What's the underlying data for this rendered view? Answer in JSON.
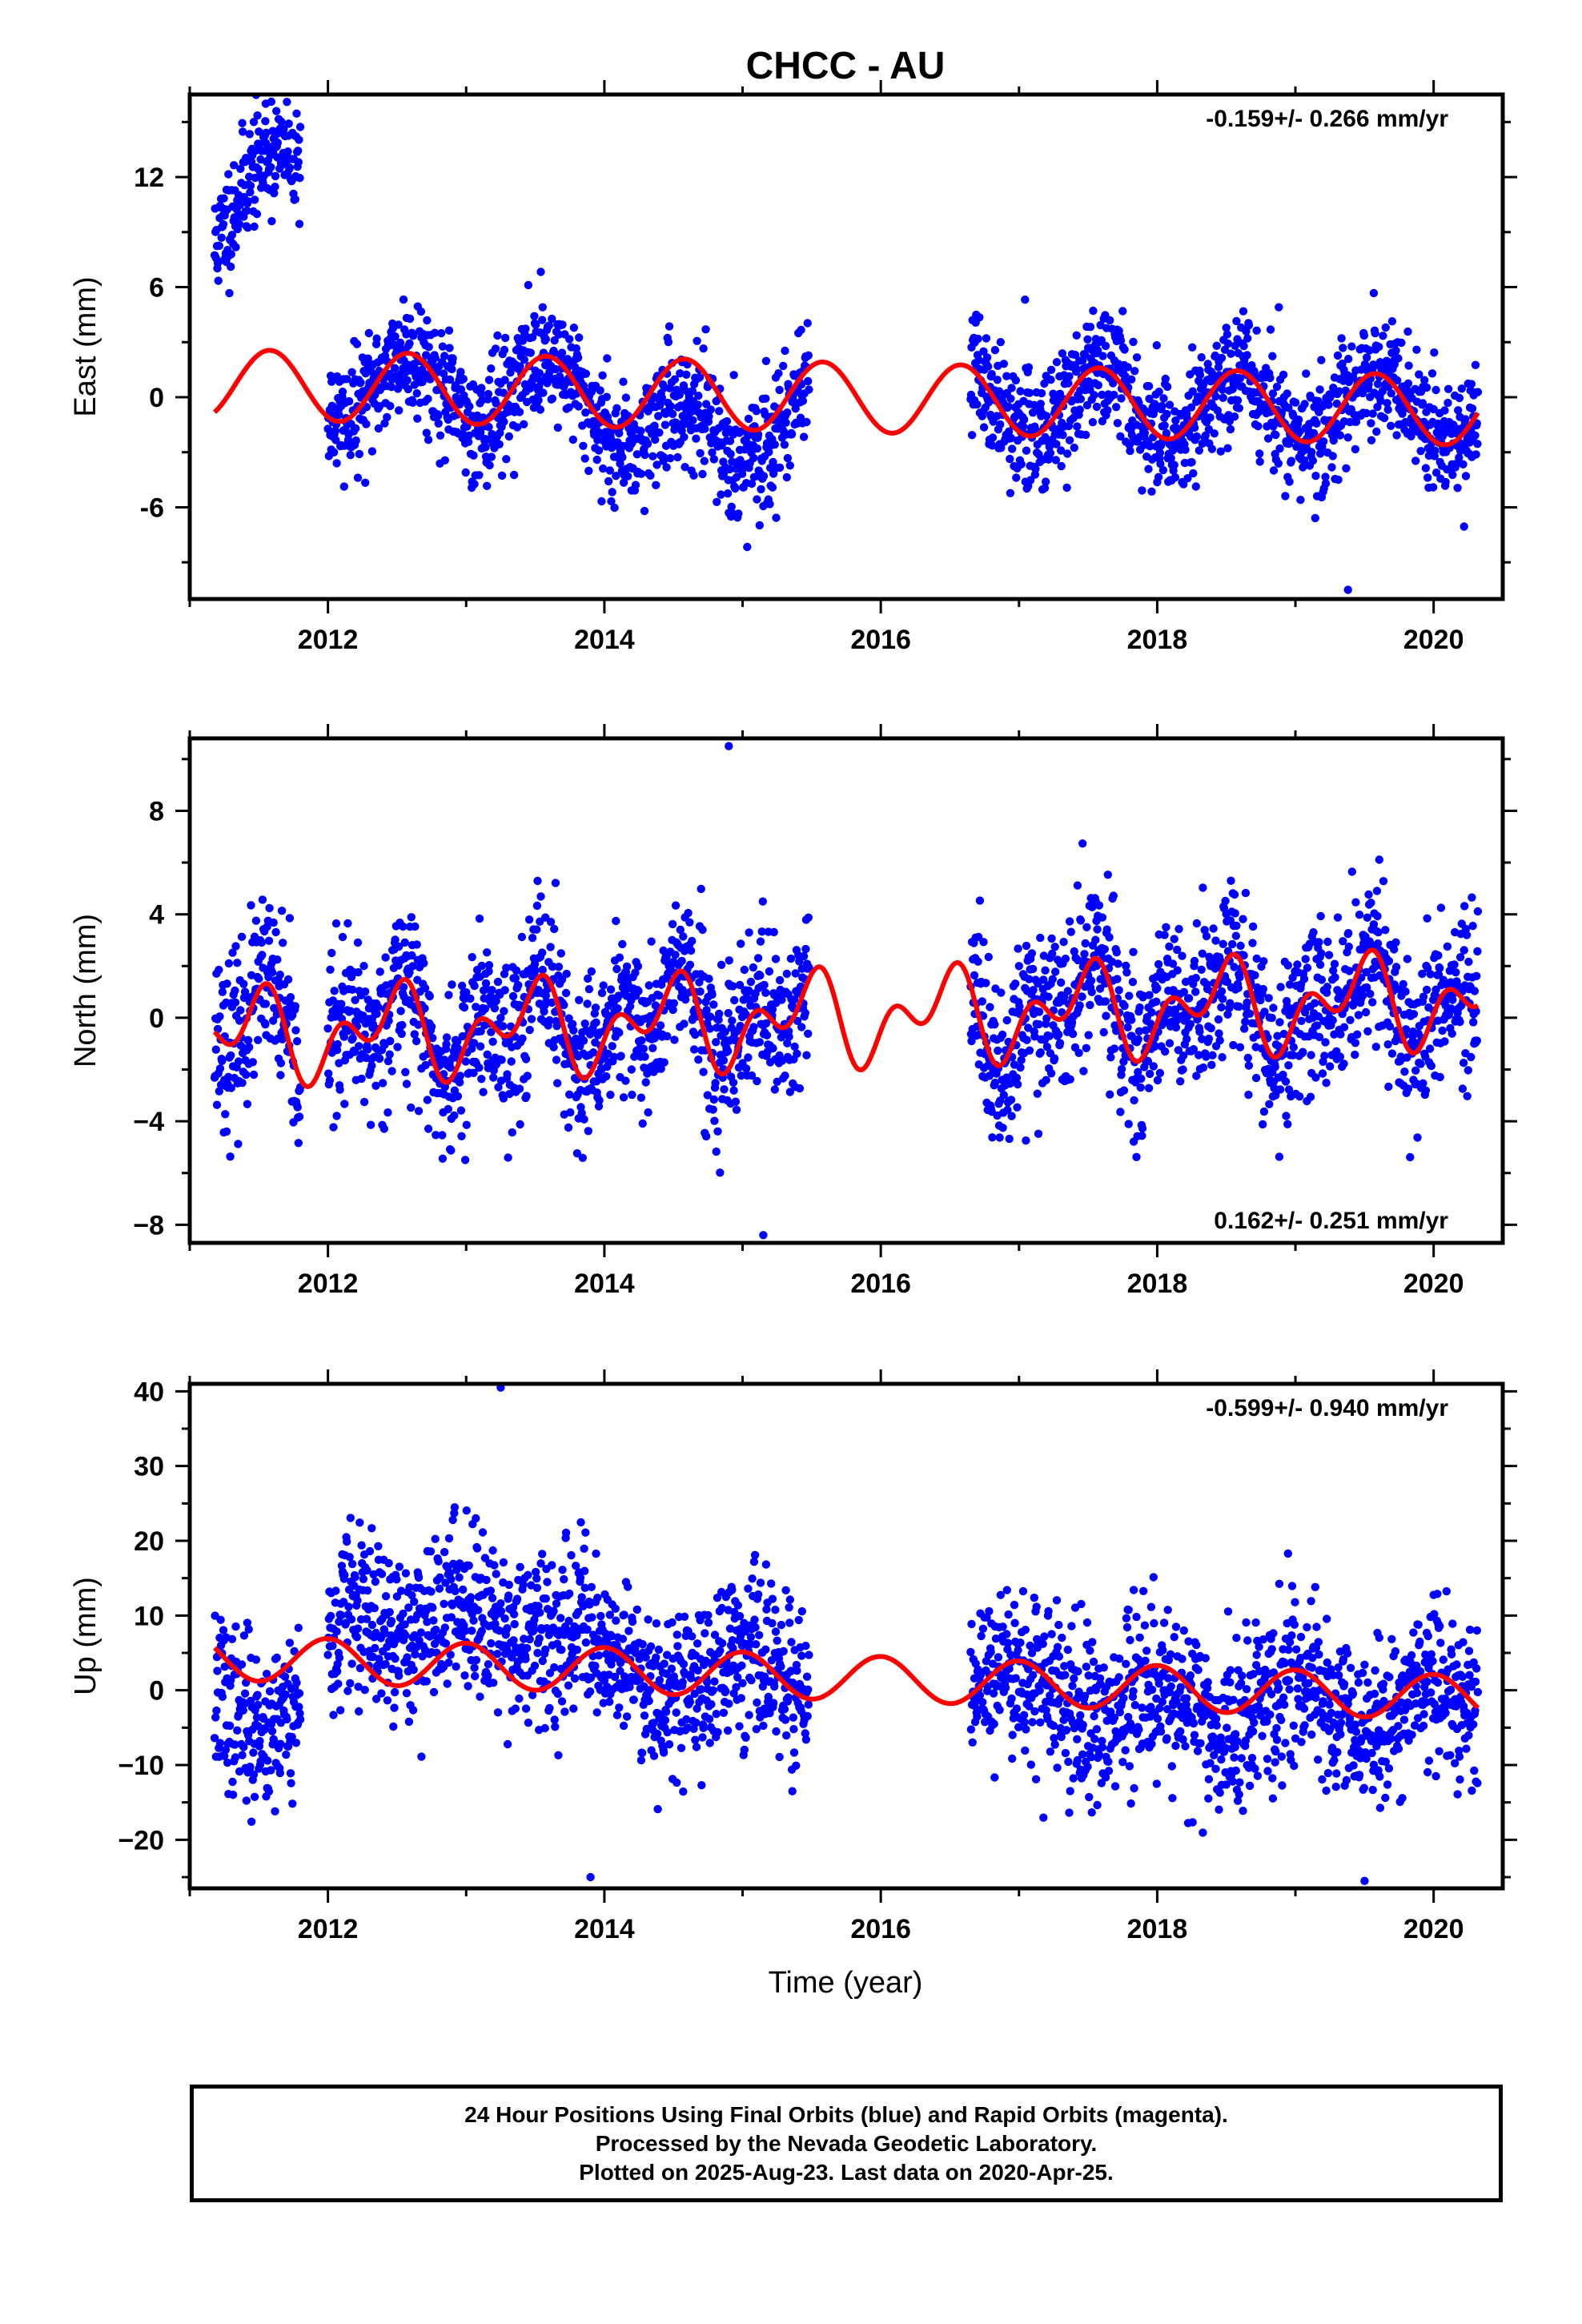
{
  "title": "CHCC - AU",
  "x_label": "Time (year)",
  "footer": {
    "line1": "24 Hour Positions Using Final Orbits (blue) and Rapid Orbits (magenta).",
    "line2": "Processed by the Nevada Geodetic Laboratory.",
    "line3": "Plotted on 2025-Aug-23. Last data on 2020-Apr-25."
  },
  "colors": {
    "points": "#0000ff",
    "model": "#ff0000",
    "frame": "#000000"
  },
  "chart_data": [
    {
      "type": "scatter",
      "name": "east",
      "ylabel": "East (mm)",
      "rate_label": "-0.159+/- 0.266 mm/yr",
      "rate_position": "top-right",
      "xlim": [
        2011.0,
        2020.5
      ],
      "ylim": [
        -11.0,
        16.5
      ],
      "x_ticks": [
        2012,
        2014,
        2016,
        2018,
        2020
      ],
      "x_tick_labels": [
        "2012",
        "2014",
        "2016",
        "2018",
        "2020"
      ],
      "y_ticks": [
        -6,
        0,
        6,
        12
      ],
      "y_tick_labels": [
        "-6",
        "0",
        "6",
        "12"
      ],
      "data_ranges": [
        [
          2011.18,
          2011.8
        ],
        [
          2012.0,
          2015.48
        ],
        [
          2016.65,
          2020.32
        ]
      ],
      "model": {
        "t0": 2011.18,
        "t1": 2020.32,
        "offset": 0.0,
        "rate": -0.159,
        "ref_year": 2015.7,
        "annual": [
          1.9,
          0.0
        ],
        "semiannual": [
          0.0,
          0.0
        ],
        "amp_decay": 0.0,
        "ann_phase": 2011.58,
        "sa_phase": 2011.58
      },
      "annotated_points": [
        {
          "x": 2011.55,
          "y": 16.0
        },
        {
          "x": 2019.38,
          "y": -10.5
        }
      ]
    },
    {
      "type": "scatter",
      "name": "north",
      "ylabel": "North (mm)",
      "rate_label": "0.162+/- 0.251 mm/yr",
      "rate_position": "bottom-right",
      "xlim": [
        2011.0,
        2020.5
      ],
      "ylim": [
        -8.7,
        10.8
      ],
      "x_ticks": [
        2012,
        2014,
        2016,
        2018,
        2020
      ],
      "x_tick_labels": [
        "2012",
        "2014",
        "2016",
        "2018",
        "2020"
      ],
      "y_ticks": [
        -8,
        -4,
        0,
        4,
        8
      ],
      "y_tick_labels": [
        "−8",
        "−4",
        "0",
        "4",
        "8"
      ],
      "data_ranges": [
        [
          2011.18,
          2011.8
        ],
        [
          2012.0,
          2015.48
        ],
        [
          2016.65,
          2020.32
        ]
      ],
      "model": {
        "t0": 2011.18,
        "t1": 2020.32,
        "offset": 0.0,
        "rate": 0.162,
        "ref_year": 2015.7,
        "annual": [
          1.2,
          0.0
        ],
        "semiannual": [
          1.1,
          0.0
        ],
        "amp_decay": 0.0,
        "ann_phase": 2011.45,
        "sa_phase": 2011.58
      },
      "annotated_points": [
        {
          "x": 2014.9,
          "y": 10.5
        },
        {
          "x": 2015.15,
          "y": -8.4
        }
      ]
    },
    {
      "type": "scatter",
      "name": "up",
      "ylabel": "Up (mm)",
      "rate_label": "-0.599+/- 0.940 mm/yr",
      "rate_position": "top-right",
      "xlim": [
        2011.0,
        2020.5
      ],
      "ylim": [
        -26.5,
        41.0
      ],
      "x_ticks": [
        2012,
        2014,
        2016,
        2018,
        2020
      ],
      "x_tick_labels": [
        "2012",
        "2014",
        "2016",
        "2018",
        "2020"
      ],
      "y_ticks": [
        -20,
        -10,
        0,
        10,
        20,
        30,
        40
      ],
      "y_tick_labels": [
        "−20",
        "−10",
        "0",
        "10",
        "20",
        "30",
        "40"
      ],
      "data_ranges": [
        [
          2011.18,
          2011.8
        ],
        [
          2012.0,
          2015.48
        ],
        [
          2016.65,
          2020.32
        ]
      ],
      "model": {
        "t0": 2011.18,
        "t1": 2020.32,
        "offset": 1.7,
        "rate": -0.599,
        "ref_year": 2015.7,
        "annual": [
          3.0,
          0.0
        ],
        "semiannual": [
          0.0,
          0.0
        ],
        "amp_decay": 0.0,
        "ann_phase": 2012.0,
        "sa_phase": 2012.0
      },
      "annotated_points": [
        {
          "x": 2013.25,
          "y": 40.5
        },
        {
          "x": 2013.9,
          "y": -25.0
        },
        {
          "x": 2019.5,
          "y": -25.5
        }
      ]
    }
  ]
}
